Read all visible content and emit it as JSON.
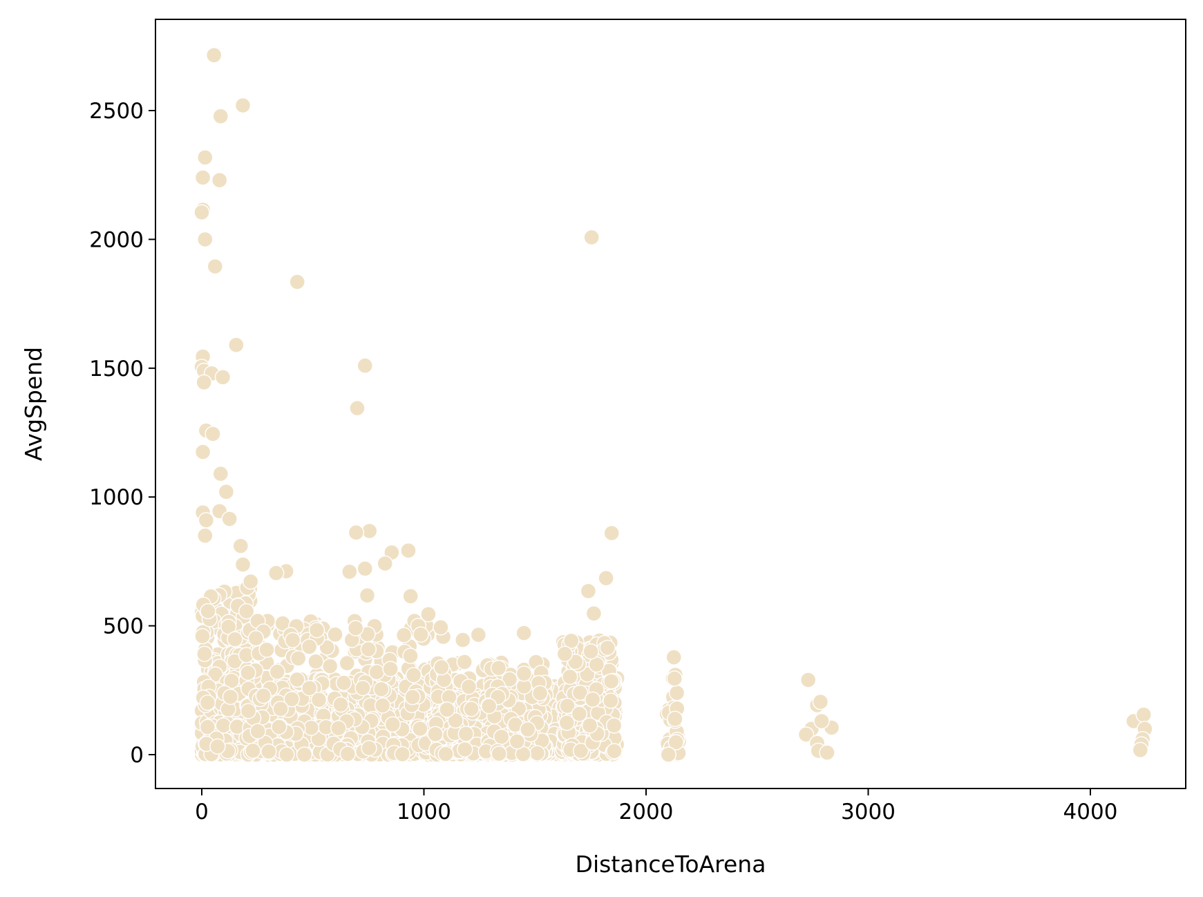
{
  "chart_data": {
    "type": "scatter",
    "title": "",
    "xlabel": "DistanceToArena",
    "ylabel": "AvgSpend",
    "xlim": [
      -210,
      4450
    ],
    "ylim": [
      -130,
      2850
    ],
    "xticks": [
      0,
      1000,
      2000,
      3000,
      4000
    ],
    "yticks": [
      0,
      500,
      1000,
      1500,
      2000,
      2500
    ],
    "grid": false,
    "legend": "none",
    "point_color": "#efe0c4",
    "outliers": [
      {
        "x": 55,
        "y": 2715
      },
      {
        "x": 185,
        "y": 2520
      },
      {
        "x": 85,
        "y": 2478
      },
      {
        "x": 15,
        "y": 2318
      },
      {
        "x": 5,
        "y": 2240
      },
      {
        "x": 80,
        "y": 2230
      },
      {
        "x": 5,
        "y": 2115
      },
      {
        "x": 0,
        "y": 2105
      },
      {
        "x": 15,
        "y": 2000
      },
      {
        "x": 1755,
        "y": 2008
      },
      {
        "x": 60,
        "y": 1895
      },
      {
        "x": 430,
        "y": 1835
      },
      {
        "x": 155,
        "y": 1590
      },
      {
        "x": 5,
        "y": 1545
      },
      {
        "x": 735,
        "y": 1510
      },
      {
        "x": 0,
        "y": 1505
      },
      {
        "x": 10,
        "y": 1490
      },
      {
        "x": 45,
        "y": 1480
      },
      {
        "x": 95,
        "y": 1465
      },
      {
        "x": 10,
        "y": 1445
      },
      {
        "x": 700,
        "y": 1345
      },
      {
        "x": 20,
        "y": 1258
      },
      {
        "x": 50,
        "y": 1245
      },
      {
        "x": 5,
        "y": 1175
      },
      {
        "x": 85,
        "y": 1090
      },
      {
        "x": 110,
        "y": 1020
      },
      {
        "x": 80,
        "y": 945
      },
      {
        "x": 5,
        "y": 940
      },
      {
        "x": 125,
        "y": 915
      },
      {
        "x": 20,
        "y": 910
      },
      {
        "x": 755,
        "y": 868
      },
      {
        "x": 695,
        "y": 862
      },
      {
        "x": 1845,
        "y": 860
      },
      {
        "x": 15,
        "y": 850
      },
      {
        "x": 175,
        "y": 810
      },
      {
        "x": 930,
        "y": 792
      },
      {
        "x": 855,
        "y": 785
      },
      {
        "x": 825,
        "y": 742
      },
      {
        "x": 185,
        "y": 738
      },
      {
        "x": 735,
        "y": 722
      },
      {
        "x": 380,
        "y": 712
      },
      {
        "x": 665,
        "y": 710
      },
      {
        "x": 335,
        "y": 705
      },
      {
        "x": 1820,
        "y": 685
      },
      {
        "x": 220,
        "y": 672
      },
      {
        "x": 1740,
        "y": 635
      },
      {
        "x": 940,
        "y": 615
      },
      {
        "x": 745,
        "y": 618
      },
      {
        "x": 1765,
        "y": 548
      },
      {
        "x": 1020,
        "y": 545
      },
      {
        "x": 1450,
        "y": 472
      },
      {
        "x": 1245,
        "y": 465
      },
      {
        "x": 1175,
        "y": 445
      },
      {
        "x": 2125,
        "y": 378
      },
      {
        "x": 2730,
        "y": 290
      },
      {
        "x": 2770,
        "y": 192
      },
      {
        "x": 2785,
        "y": 205
      },
      {
        "x": 2835,
        "y": 105
      },
      {
        "x": 2745,
        "y": 100
      },
      {
        "x": 2720,
        "y": 78
      },
      {
        "x": 2790,
        "y": 130
      },
      {
        "x": 2770,
        "y": 45
      },
      {
        "x": 2775,
        "y": 15
      },
      {
        "x": 2815,
        "y": 8
      },
      {
        "x": 4195,
        "y": 130
      },
      {
        "x": 4240,
        "y": 155
      },
      {
        "x": 4245,
        "y": 100
      },
      {
        "x": 4235,
        "y": 60
      },
      {
        "x": 4230,
        "y": 40
      },
      {
        "x": 4225,
        "y": 18
      }
    ],
    "clusters": [
      {
        "x_min": 0,
        "x_max": 220,
        "y_max": 650,
        "n": 420
      },
      {
        "x_min": 0,
        "x_max": 1870,
        "y_max": 300,
        "n": 1300
      },
      {
        "x_min": 200,
        "x_max": 1100,
        "y_max": 520,
        "n": 420
      },
      {
        "x_min": 1050,
        "x_max": 1550,
        "y_max": 360,
        "n": 260
      },
      {
        "x_min": 1620,
        "x_max": 1860,
        "y_max": 450,
        "n": 320
      },
      {
        "x_min": 2090,
        "x_max": 2150,
        "y_max": 320,
        "n": 45
      }
    ]
  }
}
